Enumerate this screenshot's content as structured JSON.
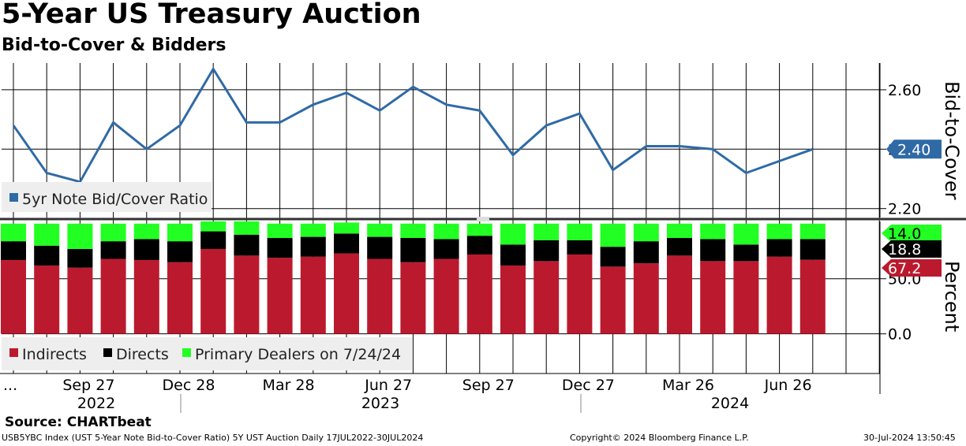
{
  "title": "5-Year US Treasury Auction",
  "subtitle": "Bid-to-Cover & Bidders",
  "source": "Source: CHARTbeat",
  "footer": {
    "left": "USB5YBC Index (UST 5-Year Note Bid-to-Cover Ratio) 5Y UST Auction  Daily 17JUL2022-30JUL2024",
    "center": "Copyright© 2024 Bloomberg Finance L.P.",
    "right": "30-Jul-2024 13:50:45"
  },
  "colors": {
    "line": "#2f6aa6",
    "indirects": "#bb1a2e",
    "directs": "#000000",
    "dealers": "#22ff22",
    "label_line": "#2f6aa6",
    "grid": "#000000"
  },
  "x_axis": {
    "ticks": [
      "...",
      "Sep 27",
      "Dec 28",
      "Mar 28",
      "Jun 27",
      "Sep 27",
      "Dec 27",
      "Mar 26",
      "Jun 26"
    ],
    "years": [
      "2022",
      "2023",
      "2024"
    ]
  },
  "chart_data": [
    {
      "type": "line",
      "title": "Bid-to-Cover",
      "ylabel": "Bid-to-Cover",
      "ylim": [
        2.17,
        2.69
      ],
      "yticks": [
        "2.20",
        "2.40",
        "2.60"
      ],
      "legend": "5yr Note Bid/Cover Ratio",
      "legend_position": "bottom-left",
      "last_value_label": "2.40",
      "series": [
        {
          "name": "5yr Note Bid/Cover Ratio",
          "values": [
            2.48,
            2.32,
            2.29,
            2.49,
            2.4,
            2.48,
            2.67,
            2.49,
            2.49,
            2.55,
            2.59,
            2.53,
            2.61,
            2.55,
            2.53,
            2.38,
            2.48,
            2.52,
            2.33,
            2.41,
            2.41,
            2.4,
            2.32,
            2.36,
            2.4
          ]
        }
      ]
    },
    {
      "type": "bar",
      "title": "Bidders",
      "ylabel": "Percent",
      "ylim": [
        -36,
        102
      ],
      "yticks": [
        "0.0",
        "50.0"
      ],
      "stacked": true,
      "legend_position": "bottom-left",
      "legend_suffix": "on 7/24/24",
      "last_value_labels": [
        "14.0",
        "18.8",
        "67.2"
      ],
      "series": [
        {
          "name": "Indirects",
          "values": [
            67,
            62,
            60,
            68,
            67,
            65,
            77,
            71,
            69,
            70,
            73,
            68,
            65,
            68,
            72,
            62,
            66,
            72,
            61,
            64,
            71,
            66,
            66,
            70,
            67.2
          ]
        },
        {
          "name": "Directs",
          "values": [
            17,
            18,
            17,
            16,
            19,
            19,
            16,
            19,
            18,
            18,
            18,
            20,
            22,
            18,
            17,
            19,
            19,
            13,
            18,
            20,
            16,
            20,
            15,
            16,
            18.8
          ]
        },
        {
          "name": "Primary Dealers",
          "values": [
            16,
            20,
            23,
            16,
            14,
            16,
            9,
            12,
            13,
            12,
            10,
            12,
            13,
            14,
            11,
            19,
            15,
            15,
            21,
            16,
            13,
            14,
            19,
            14,
            14.0
          ]
        }
      ]
    }
  ]
}
